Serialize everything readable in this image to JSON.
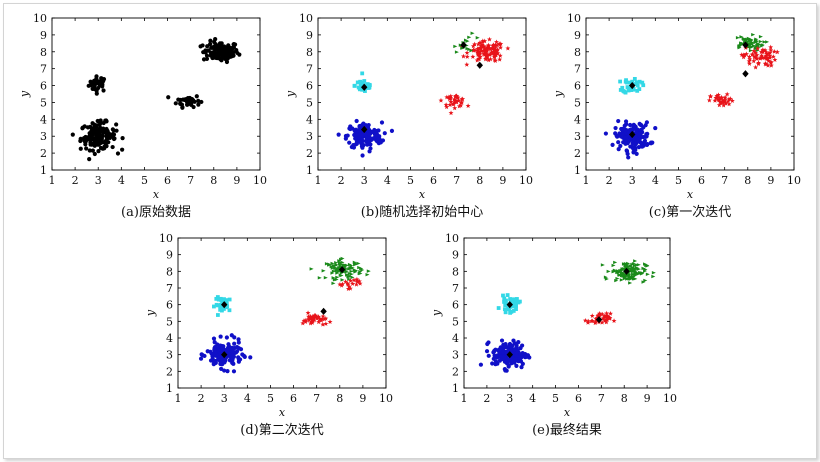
{
  "chart_data": [
    {
      "type": "scatter",
      "caption": "(a)原始数据",
      "xlabel": "x",
      "ylabel": "y",
      "xlim": [
        1,
        10
      ],
      "ylim": [
        1,
        10
      ],
      "xticks": [
        "1",
        "2",
        "3",
        "4",
        "5",
        "6",
        "7",
        "8",
        "9",
        "10"
      ],
      "yticks": [
        "1",
        "2",
        "3",
        "4",
        "5",
        "6",
        "7",
        "8",
        "9",
        "10"
      ],
      "clusters": [
        {
          "cx": 3.0,
          "cy": 6.1,
          "n": 35,
          "sx": 0.2,
          "sy": 0.22,
          "color": "#000000",
          "marker": "circle"
        },
        {
          "cx": 8.3,
          "cy": 8.0,
          "n": 120,
          "sx": 0.38,
          "sy": 0.3,
          "color": "#000000",
          "marker": "circle"
        },
        {
          "cx": 6.9,
          "cy": 5.1,
          "n": 38,
          "sx": 0.25,
          "sy": 0.18,
          "color": "#000000",
          "marker": "circle"
        },
        {
          "cx": 3.0,
          "cy": 3.0,
          "n": 150,
          "sx": 0.38,
          "sy": 0.4,
          "color": "#000000",
          "marker": "circle"
        }
      ],
      "centers": []
    },
    {
      "type": "scatter",
      "caption": "(b)随机选择初始中心",
      "xlabel": "x",
      "ylabel": "y",
      "xlim": [
        1,
        10
      ],
      "ylim": [
        1,
        10
      ],
      "xticks": [
        "1",
        "2",
        "3",
        "4",
        "5",
        "6",
        "7",
        "8",
        "9",
        "10"
      ],
      "yticks": [
        "1",
        "2",
        "3",
        "4",
        "5",
        "6",
        "7",
        "8",
        "9",
        "10"
      ],
      "clusters": [
        {
          "cx": 3.0,
          "cy": 6.0,
          "n": 35,
          "sx": 0.2,
          "sy": 0.22,
          "color": "#33d8e6",
          "marker": "square"
        },
        {
          "cx": 8.3,
          "cy": 8.0,
          "n": 105,
          "sx": 0.38,
          "sy": 0.3,
          "color": "#e8141a",
          "marker": "star"
        },
        {
          "cx": 7.5,
          "cy": 8.5,
          "n": 15,
          "sx": 0.3,
          "sy": 0.25,
          "color": "#1a8a1a",
          "marker": "tri"
        },
        {
          "cx": 6.9,
          "cy": 5.1,
          "n": 38,
          "sx": 0.25,
          "sy": 0.18,
          "color": "#e8141a",
          "marker": "star"
        },
        {
          "cx": 3.0,
          "cy": 3.0,
          "n": 150,
          "sx": 0.38,
          "sy": 0.4,
          "color": "#1010c8",
          "marker": "circle"
        }
      ],
      "centers": [
        [
          7.3,
          8.4
        ],
        [
          8.0,
          7.2
        ],
        [
          3.0,
          5.9
        ],
        [
          3.0,
          3.4
        ]
      ]
    },
    {
      "type": "scatter",
      "caption": "(c)第一次迭代",
      "xlabel": "x",
      "ylabel": "y",
      "xlim": [
        1,
        10
      ],
      "ylim": [
        1,
        10
      ],
      "xticks": [
        "1",
        "2",
        "3",
        "4",
        "5",
        "6",
        "7",
        "8",
        "9",
        "10"
      ],
      "yticks": [
        "1",
        "2",
        "3",
        "4",
        "5",
        "6",
        "7",
        "8",
        "9",
        "10"
      ],
      "clusters": [
        {
          "cx": 3.0,
          "cy": 6.0,
          "n": 35,
          "sx": 0.2,
          "sy": 0.22,
          "color": "#33d8e6",
          "marker": "square"
        },
        {
          "cx": 8.0,
          "cy": 8.5,
          "n": 60,
          "sx": 0.35,
          "sy": 0.22,
          "color": "#1a8a1a",
          "marker": "tri"
        },
        {
          "cx": 8.5,
          "cy": 7.7,
          "n": 60,
          "sx": 0.35,
          "sy": 0.28,
          "color": "#e8141a",
          "marker": "star"
        },
        {
          "cx": 6.9,
          "cy": 5.1,
          "n": 38,
          "sx": 0.25,
          "sy": 0.18,
          "color": "#e8141a",
          "marker": "star"
        },
        {
          "cx": 3.0,
          "cy": 3.0,
          "n": 150,
          "sx": 0.38,
          "sy": 0.4,
          "color": "#1010c8",
          "marker": "circle"
        }
      ],
      "centers": [
        [
          7.9,
          8.4
        ],
        [
          7.9,
          6.7
        ],
        [
          3.0,
          6.0
        ],
        [
          3.0,
          3.1
        ]
      ]
    },
    {
      "type": "scatter",
      "caption": "(d)第二次迭代",
      "xlabel": "x",
      "ylabel": "y",
      "xlim": [
        1,
        10
      ],
      "ylim": [
        1,
        10
      ],
      "xticks": [
        "1",
        "2",
        "3",
        "4",
        "5",
        "6",
        "7",
        "8",
        "9",
        "10"
      ],
      "yticks": [
        "1",
        "2",
        "3",
        "4",
        "5",
        "6",
        "7",
        "8",
        "9",
        "10"
      ],
      "clusters": [
        {
          "cx": 3.0,
          "cy": 6.0,
          "n": 35,
          "sx": 0.2,
          "sy": 0.22,
          "color": "#33d8e6",
          "marker": "square"
        },
        {
          "cx": 8.2,
          "cy": 8.1,
          "n": 100,
          "sx": 0.38,
          "sy": 0.28,
          "color": "#1a8a1a",
          "marker": "tri"
        },
        {
          "cx": 8.4,
          "cy": 7.3,
          "n": 18,
          "sx": 0.3,
          "sy": 0.15,
          "color": "#e8141a",
          "marker": "star"
        },
        {
          "cx": 6.9,
          "cy": 5.1,
          "n": 38,
          "sx": 0.25,
          "sy": 0.18,
          "color": "#e8141a",
          "marker": "star"
        },
        {
          "cx": 3.0,
          "cy": 3.0,
          "n": 150,
          "sx": 0.38,
          "sy": 0.4,
          "color": "#1010c8",
          "marker": "circle"
        }
      ],
      "centers": [
        [
          8.1,
          8.1
        ],
        [
          7.3,
          5.6
        ],
        [
          3.0,
          6.0
        ],
        [
          3.0,
          3.0
        ]
      ]
    },
    {
      "type": "scatter",
      "caption": "(e)最终结果",
      "xlabel": "x",
      "ylabel": "y",
      "xlim": [
        1,
        10
      ],
      "ylim": [
        1,
        10
      ],
      "xticks": [
        "1",
        "2",
        "3",
        "4",
        "5",
        "6",
        "7",
        "8",
        "9",
        "10"
      ],
      "yticks": [
        "1",
        "2",
        "3",
        "4",
        "5",
        "6",
        "7",
        "8",
        "9",
        "10"
      ],
      "clusters": [
        {
          "cx": 3.0,
          "cy": 6.0,
          "n": 35,
          "sx": 0.2,
          "sy": 0.22,
          "color": "#33d8e6",
          "marker": "square"
        },
        {
          "cx": 8.2,
          "cy": 8.0,
          "n": 120,
          "sx": 0.38,
          "sy": 0.3,
          "color": "#1a8a1a",
          "marker": "tri"
        },
        {
          "cx": 6.9,
          "cy": 5.1,
          "n": 38,
          "sx": 0.25,
          "sy": 0.18,
          "color": "#e8141a",
          "marker": "star"
        },
        {
          "cx": 3.0,
          "cy": 3.0,
          "n": 150,
          "sx": 0.38,
          "sy": 0.4,
          "color": "#1010c8",
          "marker": "circle"
        }
      ],
      "centers": [
        [
          8.1,
          8.0
        ],
        [
          6.9,
          5.1
        ],
        [
          3.0,
          6.0
        ],
        [
          3.0,
          3.0
        ]
      ]
    }
  ]
}
